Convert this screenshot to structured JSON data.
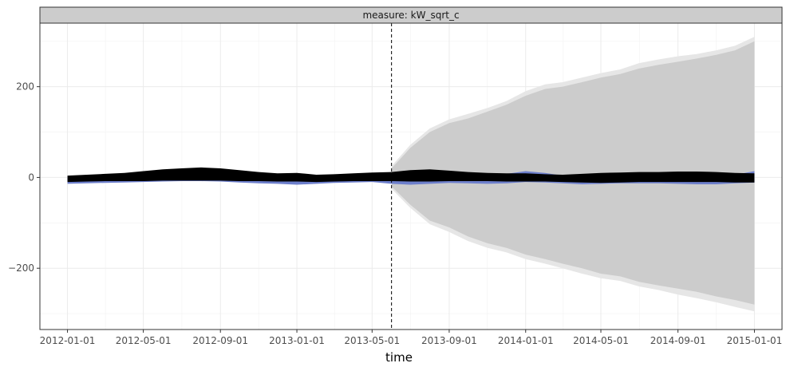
{
  "chart_data": {
    "type": "line",
    "facet_label": "measure: kW_sqrt_c",
    "xlabel": "time",
    "ylabel": "",
    "xlim": [
      "2011-11-18",
      "2015-02-14"
    ],
    "ylim": [
      -335,
      340
    ],
    "x_ticks": [
      "2012-01-01",
      "2012-05-01",
      "2012-09-01",
      "2013-01-01",
      "2013-05-01",
      "2013-09-01",
      "2014-01-01",
      "2014-05-01",
      "2014-09-01",
      "2015-01-01"
    ],
    "y_ticks": [
      -200,
      0,
      200
    ],
    "forecast_start": "2013-06-01",
    "grid": true,
    "series": [
      {
        "kind": "actual_and_forecast",
        "color": "#000000",
        "x": [
          "2012-01-01",
          "2012-02-01",
          "2012-03-01",
          "2012-04-01",
          "2012-05-01",
          "2012-06-01",
          "2012-07-01",
          "2012-08-01",
          "2012-09-01",
          "2012-10-01",
          "2012-11-01",
          "2012-12-01",
          "2013-01-01",
          "2013-02-01",
          "2013-03-01",
          "2013-04-01",
          "2013-05-01",
          "2013-06-01",
          "2013-07-01",
          "2013-08-01",
          "2013-09-01",
          "2013-10-01",
          "2013-11-01",
          "2013-12-01",
          "2014-01-01",
          "2014-02-01",
          "2014-03-01",
          "2014-04-01",
          "2014-05-01",
          "2014-06-01",
          "2014-07-01",
          "2014-08-01",
          "2014-09-01",
          "2014-10-01",
          "2014-11-01",
          "2014-12-01",
          "2015-01-01"
        ],
        "upper": [
          4,
          6,
          8,
          10,
          14,
          18,
          20,
          22,
          20,
          16,
          12,
          9,
          10,
          6,
          7,
          9,
          11,
          12,
          16,
          18,
          15,
          12,
          10,
          9,
          9,
          7,
          6,
          8,
          10,
          11,
          12,
          12,
          13,
          13,
          12,
          10,
          9
        ],
        "lower": [
          -10,
          -9,
          -8,
          -8,
          -8,
          -7,
          -7,
          -7,
          -7,
          -8,
          -8,
          -9,
          -9,
          -10,
          -9,
          -8,
          -8,
          -8,
          -9,
          -9,
          -8,
          -8,
          -8,
          -9,
          -9,
          -9,
          -10,
          -11,
          -12,
          -11,
          -10,
          -10,
          -10,
          -10,
          -10,
          -11,
          -11
        ]
      },
      {
        "kind": "fitted",
        "color": "#6d7fcc",
        "x": [
          "2012-01-01",
          "2012-02-01",
          "2012-03-01",
          "2012-04-01",
          "2012-05-01",
          "2012-06-01",
          "2012-07-01",
          "2012-08-01",
          "2012-09-01",
          "2012-10-01",
          "2012-11-01",
          "2012-12-01",
          "2013-01-01",
          "2013-02-01",
          "2013-03-01",
          "2013-04-01",
          "2013-05-01",
          "2013-06-01",
          "2013-07-01",
          "2013-08-01",
          "2013-09-01",
          "2013-10-01",
          "2013-11-01",
          "2013-12-01",
          "2014-01-01",
          "2014-02-01",
          "2014-03-01",
          "2014-04-01",
          "2014-05-01",
          "2014-06-01",
          "2014-07-01",
          "2014-08-01",
          "2014-09-01",
          "2014-10-01",
          "2014-11-01",
          "2014-12-01",
          "2015-01-01"
        ],
        "upper": [
          1,
          2,
          3,
          4,
          5,
          7,
          8,
          8,
          8,
          6,
          4,
          3,
          2,
          1,
          2,
          3,
          5,
          6,
          4,
          2,
          1,
          2,
          4,
          8,
          14,
          10,
          4,
          3,
          6,
          9,
          8,
          6,
          4,
          3,
          2,
          6,
          14
        ],
        "lower": [
          -14,
          -13,
          -12,
          -11,
          -10,
          -9,
          -8,
          -8,
          -9,
          -11,
          -13,
          -14,
          -16,
          -14,
          -12,
          -11,
          -10,
          -14,
          -16,
          -14,
          -12,
          -13,
          -14,
          -13,
          -10,
          -11,
          -13,
          -15,
          -14,
          -13,
          -13,
          -13,
          -14,
          -15,
          -15,
          -13,
          -11
        ]
      }
    ],
    "forecast_interval": {
      "color": "#cccccc",
      "x": [
        "2013-06-01",
        "2013-07-01",
        "2013-08-01",
        "2013-09-01",
        "2013-10-01",
        "2013-11-01",
        "2013-12-01",
        "2014-01-01",
        "2014-02-01",
        "2014-03-01",
        "2014-04-01",
        "2014-05-01",
        "2014-06-01",
        "2014-07-01",
        "2014-08-01",
        "2014-09-01",
        "2014-10-01",
        "2014-11-01",
        "2014-12-01",
        "2015-01-01"
      ],
      "inner_upper": [
        20,
        65,
        100,
        120,
        130,
        145,
        160,
        180,
        195,
        200,
        210,
        220,
        228,
        240,
        248,
        255,
        262,
        270,
        280,
        300
      ],
      "inner_lower": [
        -20,
        -60,
        -95,
        -110,
        -130,
        -145,
        -155,
        -170,
        -180,
        -190,
        -200,
        -212,
        -218,
        -230,
        -238,
        -245,
        -252,
        -262,
        -270,
        -280
      ],
      "outer_upper": [
        25,
        72,
        108,
        128,
        140,
        153,
        168,
        190,
        205,
        210,
        220,
        230,
        238,
        252,
        260,
        267,
        272,
        280,
        290,
        310
      ],
      "outer_lower": [
        -25,
        -67,
        -103,
        -120,
        -140,
        -155,
        -165,
        -180,
        -190,
        -200,
        -212,
        -222,
        -228,
        -240,
        -248,
        -258,
        -266,
        -275,
        -285,
        -295
      ]
    }
  }
}
